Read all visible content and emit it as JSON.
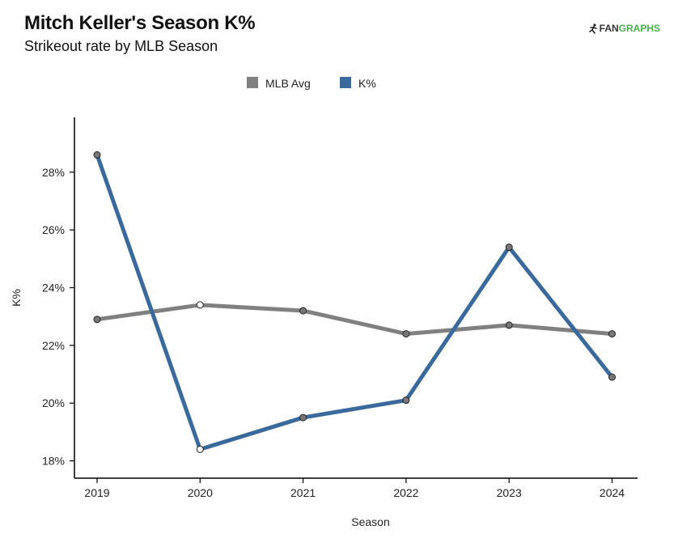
{
  "header": {
    "title": "Mitch Keller's Season K%",
    "subtitle": "Strikeout rate by MLB Season"
  },
  "logo": {
    "part1": "FAN",
    "part2": "GRAPHS",
    "icon": "runner-icon"
  },
  "colors": {
    "mlb_avg": "#808080",
    "k_pct": "#3a6a9c",
    "marker_fill": "#777777",
    "marker_open": "#ffffff",
    "logo_green": "#4caf50"
  },
  "chart_data": {
    "type": "line",
    "title": "Mitch Keller's Season K%",
    "subtitle": "Strikeout rate by MLB Season",
    "xlabel": "Season",
    "ylabel": "K%",
    "categories": [
      "2019",
      "2020",
      "2021",
      "2022",
      "2023",
      "2024"
    ],
    "ylim": [
      17.4,
      29.9
    ],
    "yticks": [
      18,
      20,
      22,
      24,
      26,
      28
    ],
    "ytick_labels": [
      "18%",
      "20%",
      "22%",
      "24%",
      "26%",
      "28%"
    ],
    "legend_position": "top-center",
    "grid": false,
    "series": [
      {
        "name": "MLB Avg",
        "values": [
          22.9,
          23.4,
          23.2,
          22.4,
          22.7,
          22.4
        ]
      },
      {
        "name": "K%",
        "values": [
          28.6,
          18.4,
          19.5,
          20.1,
          25.4,
          20.9
        ]
      }
    ],
    "open_markers_for": [
      "2020"
    ]
  }
}
